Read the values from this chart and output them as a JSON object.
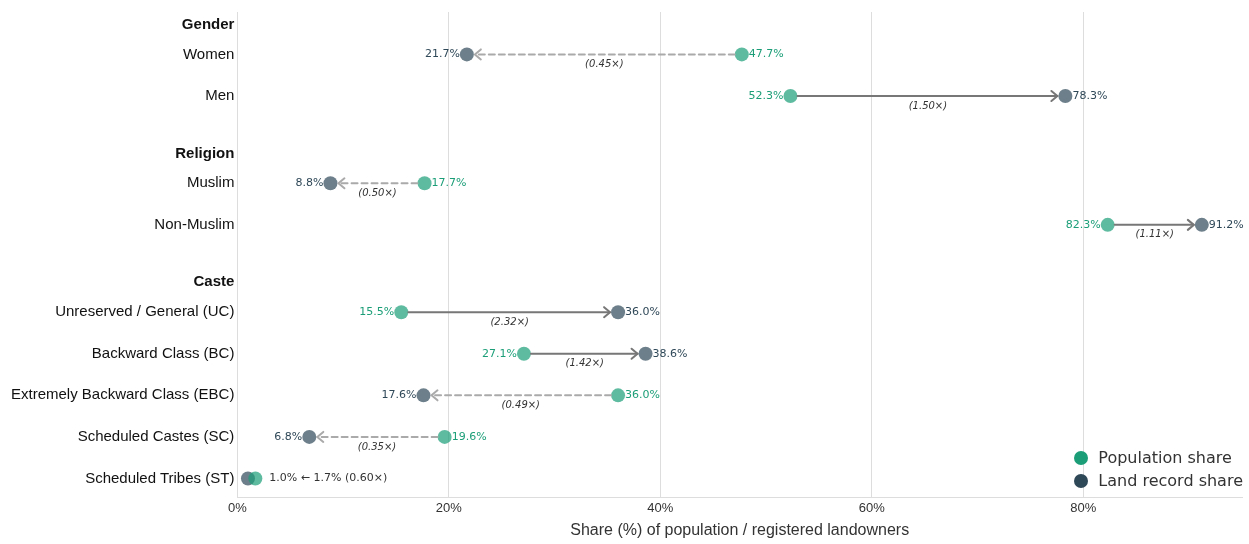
{
  "chart_data": {
    "type": "scatter",
    "orientation": "horizontal",
    "xlabel": "Share (%) of population / registered landowners",
    "categories": [
      "Gender",
      "Women",
      "Men",
      "Religion",
      "Muslim",
      "Non-Muslim",
      "Caste",
      "Unreserved / General (UC)",
      "Backward Class (BC)",
      "Extremely Backward Class (EBC)",
      "Scheduled Castes (SC)",
      "Scheduled Tribes (ST)"
    ],
    "series": [
      {
        "name": "Population share",
        "color": "#1b9e77",
        "values": [
          null,
          47.7,
          52.3,
          null,
          17.7,
          82.3,
          null,
          15.5,
          27.1,
          36.0,
          19.6,
          1.7
        ],
        "value_labels": [
          null,
          "47.7%",
          "52.3%",
          null,
          "17.7%",
          "82.3%",
          null,
          "15.5%",
          "27.1%",
          "36.0%",
          "19.6%",
          null
        ]
      },
      {
        "name": "Land record share",
        "color": "#2f4858",
        "values": [
          null,
          21.7,
          78.3,
          null,
          8.8,
          91.2,
          null,
          36.0,
          38.6,
          17.6,
          6.8,
          1.0
        ],
        "value_labels": [
          null,
          "21.7%",
          "78.3%",
          null,
          "8.8%",
          "91.2%",
          null,
          "36.0%",
          "38.6%",
          "17.6%",
          "6.8%",
          null
        ]
      }
    ],
    "xlim": [
      0,
      95
    ],
    "xticks": [
      {
        "value": 0,
        "label": "0%"
      },
      {
        "value": 20,
        "label": "20%"
      },
      {
        "value": 40,
        "label": "40%"
      },
      {
        "value": 60,
        "label": "60%"
      },
      {
        "value": 80,
        "label": "80%"
      }
    ],
    "grid": "x",
    "legend": "bottom right",
    "marker": "circle",
    "annotations": [
      "(0.45×)",
      "(1.50×)",
      "(0.50×)",
      "(1.11×)",
      "(2.32×)",
      "(1.42×)",
      "(0.49×)",
      "(0.35×)",
      "1.0% ← 1.7% (0.60×)"
    ]
  }
}
